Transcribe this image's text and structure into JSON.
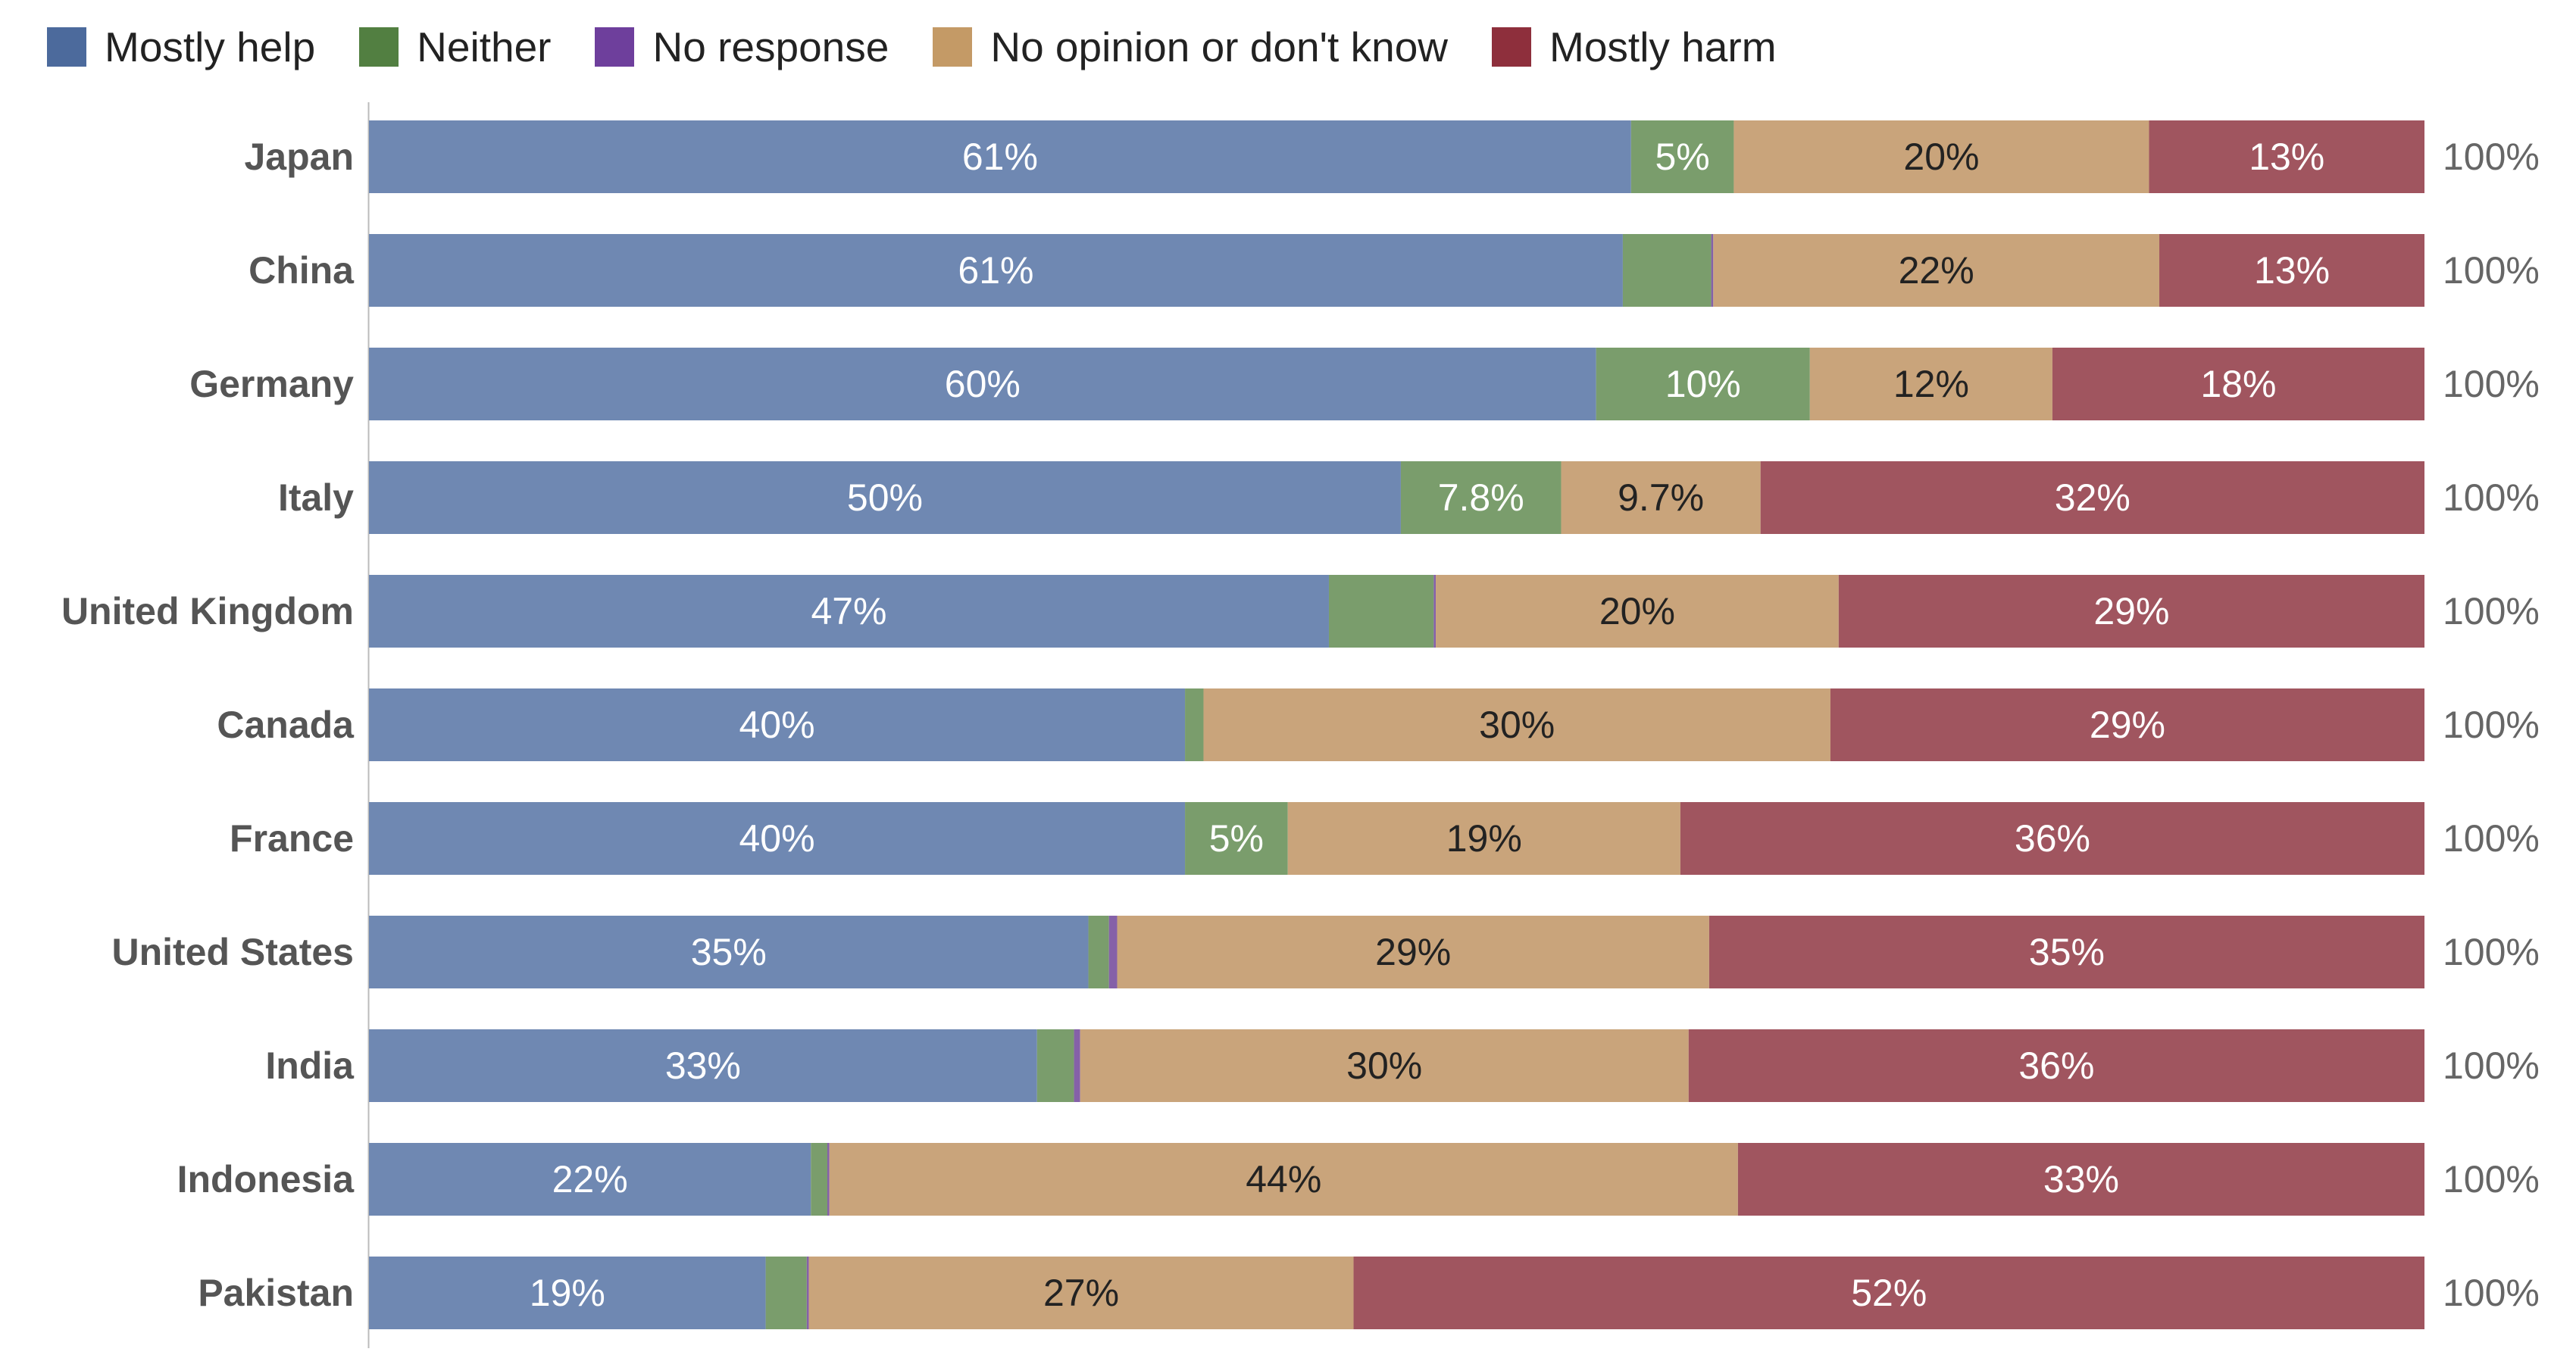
{
  "chart_data": {
    "type": "bar",
    "orientation": "horizontal",
    "stacked": true,
    "legend_position": "top-left",
    "grid": false,
    "xlim": [
      0,
      100
    ],
    "categories": [
      "Japan",
      "China",
      "Germany",
      "Italy",
      "United Kingdom",
      "Canada",
      "France",
      "United States",
      "India",
      "Indonesia",
      "Pakistan"
    ],
    "series": [
      {
        "name": "Mostly help",
        "color": "#4c6a9c",
        "bar_color": "#6f88b2",
        "label_color": "#ffffff",
        "values": [
          61.4,
          61.0,
          59.7,
          50.2,
          46.7,
          39.7,
          39.7,
          35.0,
          32.5,
          21.5,
          19.3
        ],
        "labels": [
          "61%",
          "61%",
          "60%",
          "50%",
          "47%",
          "40%",
          "40%",
          "35%",
          "33%",
          "22%",
          "19%"
        ]
      },
      {
        "name": "Neither",
        "color": "#527f41",
        "bar_color": "#7a9d6c",
        "label_color": "#ffffff",
        "values": [
          5.0,
          4.3,
          10.4,
          7.8,
          5.1,
          0.9,
          5.0,
          1.0,
          1.8,
          0.8,
          2.0
        ],
        "labels": [
          "5%",
          "",
          "10%",
          "7.8%",
          "",
          "",
          "5%",
          "",
          "",
          "",
          ""
        ]
      },
      {
        "name": "No response",
        "color": "#6e3f9c",
        "bar_color": "#8561a8",
        "label_color": "#ffffff",
        "values": [
          0.0,
          0.1,
          0.0,
          0.0,
          0.1,
          0.0,
          0.0,
          0.4,
          0.3,
          0.1,
          0.1
        ],
        "labels": [
          "",
          "",
          "",
          "",
          "",
          "",
          "",
          "",
          "",
          "",
          ""
        ]
      },
      {
        "name": "No opinion or don't know",
        "color": "#c49a66",
        "bar_color": "#c9a47b",
        "label_color": "#222222",
        "values": [
          20.2,
          21.7,
          11.8,
          9.7,
          19.6,
          30.5,
          19.1,
          28.8,
          29.6,
          44.2,
          26.5
        ],
        "labels": [
          "20%",
          "22%",
          "12%",
          "9.7%",
          "20%",
          "30%",
          "19%",
          "29%",
          "30%",
          "44%",
          "27%"
        ]
      },
      {
        "name": "Mostly harm",
        "color": "#8e2f3c",
        "bar_color": "#a0555f",
        "label_color": "#ffffff",
        "values": [
          13.4,
          12.9,
          18.1,
          32.3,
          28.5,
          28.9,
          36.2,
          34.8,
          35.8,
          33.4,
          52.1
        ],
        "labels": [
          "13%",
          "13%",
          "18%",
          "32%",
          "29%",
          "29%",
          "36%",
          "35%",
          "36%",
          "33%",
          "52%"
        ]
      }
    ],
    "totals": [
      "100%",
      "100%",
      "100%",
      "100%",
      "100%",
      "100%",
      "100%",
      "100%",
      "100%",
      "100%",
      "100%"
    ]
  }
}
